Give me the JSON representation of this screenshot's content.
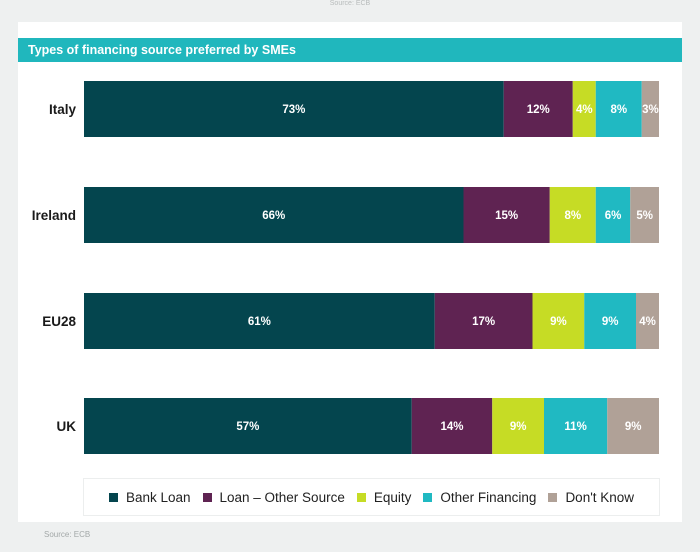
{
  "top_source": "Source: ECB",
  "bottom_source": "Source: ECB",
  "chart_data": {
    "type": "bar",
    "orientation": "horizontal",
    "stacked": true,
    "title": "Types of financing source preferred by SMEs",
    "categories": [
      "Italy",
      "Ireland",
      "EU28",
      "UK"
    ],
    "series": [
      {
        "name": "Bank Loan",
        "color": "#04454e",
        "values": [
          73,
          66,
          61,
          57
        ]
      },
      {
        "name": "Loan – Other Source",
        "color": "#5f2352",
        "values": [
          12,
          15,
          17,
          14
        ]
      },
      {
        "name": "Equity",
        "color": "#c6dc25",
        "values": [
          4,
          8,
          9,
          9
        ]
      },
      {
        "name": "Other Financing",
        "color": "#20b9c2",
        "values": [
          8,
          6,
          9,
          11
        ]
      },
      {
        "name": "Don't Know",
        "color": "#b0a197",
        "values": [
          3,
          5,
          4,
          9
        ]
      }
    ],
    "data_labels": [
      [
        "73%",
        "12%",
        "4%",
        "8%",
        "3%"
      ],
      [
        "66%",
        "15%",
        "8%",
        "6%",
        "5%"
      ],
      [
        "61%",
        "17%",
        "9%",
        "9%",
        "4%"
      ],
      [
        "57%",
        "14%",
        "9%",
        "11%",
        "9%"
      ]
    ],
    "legend_position": "bottom",
    "grid": false
  }
}
